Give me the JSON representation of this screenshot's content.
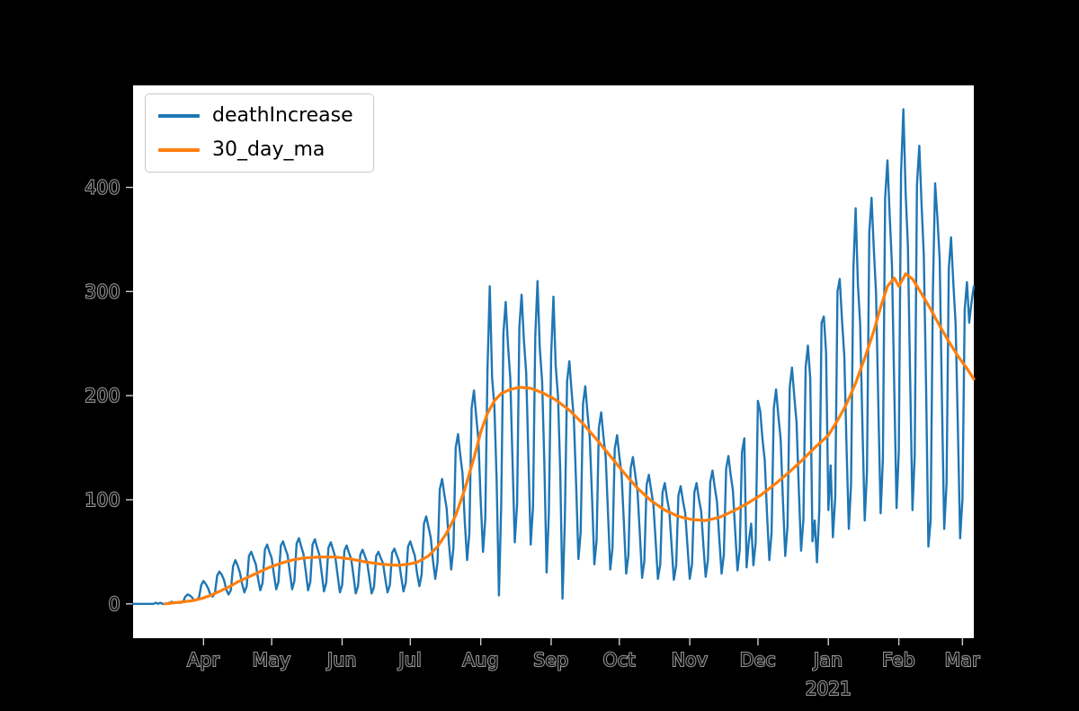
{
  "chart_data": {
    "type": "line",
    "title": "",
    "xlabel": "",
    "ylabel": "",
    "grid": false,
    "figure_background": "#000000",
    "plot_background": "#ffffff",
    "legend": {
      "position": "upper-left",
      "entries": [
        "deathIncrease",
        "30_day_ma"
      ]
    },
    "axes": {
      "xlim_days": [
        0,
        370
      ],
      "ylim": [
        -33,
        498
      ]
    },
    "x_ticks": [
      {
        "label": "Apr",
        "day": 31
      },
      {
        "label": "May",
        "day": 61
      },
      {
        "label": "Jun",
        "day": 92
      },
      {
        "label": "Jul",
        "day": 122
      },
      {
        "label": "Aug",
        "day": 153
      },
      {
        "label": "Sep",
        "day": 184
      },
      {
        "label": "Oct",
        "day": 214
      },
      {
        "label": "Nov",
        "day": 245
      },
      {
        "label": "Dec",
        "day": 275
      },
      {
        "label": "Jan",
        "day": 306
      },
      {
        "label": "Feb",
        "day": 337
      },
      {
        "label": "Mar",
        "day": 365
      }
    ],
    "year_label": {
      "label": "2021",
      "day": 306
    },
    "y_ticks": [
      {
        "label": "0",
        "value": 0
      },
      {
        "label": "100",
        "value": 100
      },
      {
        "label": "200",
        "value": 200
      },
      {
        "label": "300",
        "value": 300
      },
      {
        "label": "400",
        "value": 400
      }
    ],
    "series": [
      {
        "name": "deathIncrease",
        "color": "#1f77b4",
        "x_start_day": 0,
        "x_step_days": 1,
        "values": [
          0,
          0,
          0,
          0,
          0,
          0,
          0,
          0,
          0,
          0,
          1,
          0,
          1,
          0,
          0,
          0,
          1,
          2,
          1,
          1,
          1,
          1,
          2,
          7,
          9,
          8,
          6,
          3,
          4,
          6,
          18,
          22,
          19,
          15,
          9,
          7,
          10,
          27,
          31,
          28,
          23,
          14,
          9,
          13,
          36,
          42,
          37,
          30,
          19,
          11,
          17,
          46,
          50,
          44,
          38,
          24,
          13,
          20,
          52,
          57,
          50,
          44,
          28,
          14,
          21,
          56,
          60,
          53,
          47,
          30,
          14,
          22,
          58,
          63,
          55,
          48,
          31,
          13,
          21,
          57,
          62,
          54,
          47,
          30,
          12,
          20,
          54,
          59,
          52,
          45,
          28,
          11,
          18,
          51,
          56,
          49,
          43,
          27,
          10,
          17,
          47,
          52,
          46,
          40,
          25,
          10,
          16,
          46,
          50,
          44,
          39,
          24,
          11,
          18,
          49,
          53,
          47,
          41,
          26,
          12,
          20,
          55,
          60,
          53,
          46,
          29,
          17,
          28,
          77,
          84,
          74,
          64,
          41,
          24,
          40,
          110,
          120,
          105,
          92,
          58,
          33,
          54,
          150,
          163,
          143,
          125,
          79,
          42,
          68,
          188,
          205,
          180,
          157,
          99,
          50,
          82,
          227,
          305,
          217,
          190,
          120,
          8,
          94,
          260,
          290,
          248,
          217,
          137,
          59,
          96,
          266,
          297,
          254,
          222,
          140,
          57,
          93,
          257,
          310,
          246,
          214,
          135,
          30,
          87,
          240,
          295,
          229,
          199,
          126,
          5,
          77,
          214,
          233,
          204,
          178,
          113,
          43,
          69,
          192,
          209,
          183,
          160,
          101,
          38,
          61,
          169,
          184,
          161,
          141,
          89,
          33,
          54,
          149,
          162,
          142,
          124,
          79,
          29,
          47,
          130,
          141,
          124,
          108,
          69,
          25,
          41,
          114,
          124,
          109,
          95,
          60,
          24,
          38,
          107,
          116,
          101,
          89,
          56,
          23,
          37,
          104,
          113,
          99,
          87,
          55,
          24,
          38,
          107,
          116,
          101,
          89,
          56,
          26,
          42,
          117,
          128,
          112,
          98,
          62,
          29,
          47,
          130,
          142,
          124,
          109,
          69,
          32,
          52,
          146,
          159,
          35,
          60,
          77,
          37,
          59,
          195,
          185,
          158,
          138,
          87,
          42,
          68,
          188,
          206,
          180,
          158,
          100,
          46,
          74,
          208,
          227,
          199,
          174,
          110,
          51,
          81,
          227,
          248,
          217,
          60,
          80,
          40,
          90,
          270,
          276,
          242,
          90,
          133,
          64,
          102,
          300,
          312,
          273,
          238,
          150,
          72,
          115,
          322,
          380,
          307,
          269,
          169,
          80,
          127,
          357,
          390,
          341,
          298,
          188,
          87,
          139,
          390,
          426,
          372,
          325,
          205,
          92,
          147,
          414,
          475,
          395,
          344,
          217,
          90,
          143,
          403,
          440,
          384,
          335,
          211,
          55,
          80,
          300,
          404,
          370,
          330,
          194,
          72,
          115,
          322,
          352,
          307,
          269,
          169,
          63,
          101,
          283,
          309,
          270,
          290,
          305
        ]
      },
      {
        "name": "30_day_ma",
        "color": "#ff7f0e",
        "points": [
          [
            14,
            0
          ],
          [
            18,
            1
          ],
          [
            22,
            2
          ],
          [
            26,
            3
          ],
          [
            30,
            5
          ],
          [
            34,
            8
          ],
          [
            38,
            12
          ],
          [
            42,
            16
          ],
          [
            46,
            21
          ],
          [
            50,
            25
          ],
          [
            55,
            30
          ],
          [
            60,
            35
          ],
          [
            65,
            39
          ],
          [
            70,
            42
          ],
          [
            75,
            44
          ],
          [
            82,
            45
          ],
          [
            89,
            45
          ],
          [
            96,
            43
          ],
          [
            103,
            40
          ],
          [
            110,
            38
          ],
          [
            116,
            37
          ],
          [
            121,
            38
          ],
          [
            125,
            40
          ],
          [
            130,
            46
          ],
          [
            134,
            55
          ],
          [
            138,
            68
          ],
          [
            142,
            85
          ],
          [
            146,
            110
          ],
          [
            150,
            140
          ],
          [
            153,
            165
          ],
          [
            156,
            183
          ],
          [
            159,
            195
          ],
          [
            162,
            202
          ],
          [
            166,
            206
          ],
          [
            170,
            208
          ],
          [
            175,
            207
          ],
          [
            180,
            203
          ],
          [
            186,
            196
          ],
          [
            192,
            186
          ],
          [
            198,
            173
          ],
          [
            204,
            158
          ],
          [
            210,
            142
          ],
          [
            216,
            126
          ],
          [
            222,
            111
          ],
          [
            228,
            99
          ],
          [
            234,
            90
          ],
          [
            240,
            84
          ],
          [
            246,
            81
          ],
          [
            252,
            80
          ],
          [
            258,
            83
          ],
          [
            264,
            89
          ],
          [
            270,
            96
          ],
          [
            276,
            104
          ],
          [
            282,
            114
          ],
          [
            288,
            125
          ],
          [
            294,
            137
          ],
          [
            300,
            150
          ],
          [
            306,
            162
          ],
          [
            310,
            176
          ],
          [
            314,
            192
          ],
          [
            318,
            212
          ],
          [
            322,
            236
          ],
          [
            326,
            262
          ],
          [
            329,
            285
          ],
          [
            332,
            305
          ],
          [
            335,
            313
          ],
          [
            337,
            305
          ],
          [
            340,
            317
          ],
          [
            343,
            312
          ],
          [
            347,
            298
          ],
          [
            351,
            283
          ],
          [
            355,
            267
          ],
          [
            359,
            252
          ],
          [
            363,
            238
          ],
          [
            367,
            226
          ],
          [
            370,
            216
          ]
        ]
      }
    ]
  }
}
